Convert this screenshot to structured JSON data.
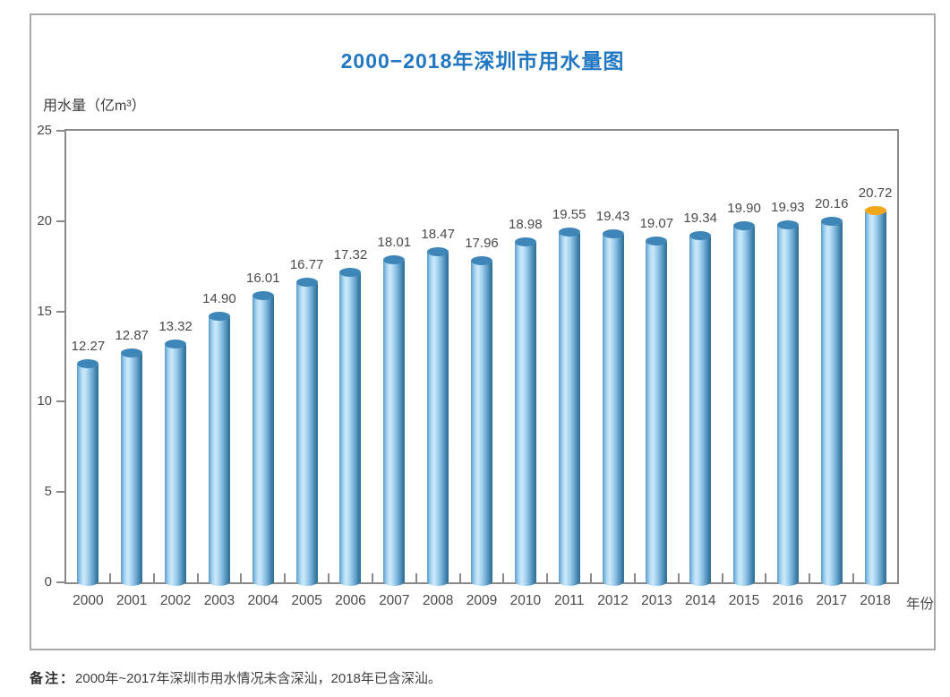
{
  "page": {
    "title": "2000−2018年深圳市用水量图",
    "note_label": "备注：",
    "note_text": "2000年~2017年深圳市用水情况未含深汕，2018年已含深汕。"
  },
  "chart_data": {
    "type": "bar",
    "title": "2000−2018年深圳市用水量图",
    "ylabel": "用水量（亿m³）",
    "xlabel": "年份",
    "categories": [
      "2000",
      "2001",
      "2002",
      "2003",
      "2004",
      "2005",
      "2006",
      "2007",
      "2008",
      "2009",
      "2010",
      "2011",
      "2012",
      "2013",
      "2014",
      "2015",
      "2016",
      "2017",
      "2018"
    ],
    "values": [
      12.27,
      12.87,
      13.32,
      14.9,
      16.01,
      16.77,
      17.32,
      18.01,
      18.47,
      17.96,
      18.98,
      19.55,
      19.43,
      19.07,
      19.34,
      19.9,
      19.93,
      20.16,
      20.72
    ],
    "value_labels": [
      "12.27",
      "12.87",
      "13.32",
      "14.90",
      "16.01",
      "16.77",
      "17.32",
      "18.01",
      "18.47",
      "17.96",
      "18.98",
      "19.55",
      "19.43",
      "19.07",
      "19.34",
      "19.90",
      "19.93",
      "20.16",
      "20.72"
    ],
    "ylim": [
      0,
      25
    ],
    "yticks": [
      0,
      5,
      10,
      15,
      20,
      25
    ],
    "grid": false,
    "legend": "none",
    "highlight_index": 18,
    "colors": {
      "title": "#2277c2",
      "bar_edge_dark": "#2f6f96",
      "bar_highlight_light": "#cdeafb",
      "cap_blue": "#3e85b8",
      "cap_orange_2018": "#f2a61c",
      "axis_gray": "#8a8a8a",
      "label_gray": "#4a4a4a"
    }
  }
}
